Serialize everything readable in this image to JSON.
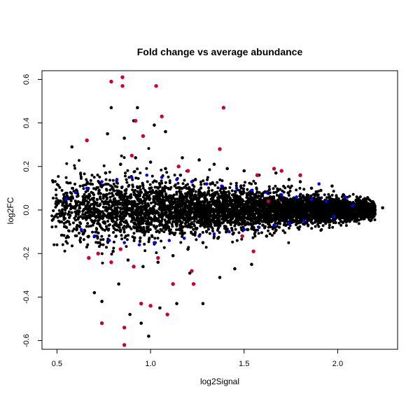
{
  "chart_data": {
    "type": "scatter",
    "title": "Fold change vs average abundance",
    "xlabel": "log2Signal",
    "ylabel": "log2FC",
    "xlim": [
      0.42,
      2.32
    ],
    "ylim": [
      -0.64,
      0.64
    ],
    "x_ticks": [
      0.5,
      1.0,
      1.5,
      2.0
    ],
    "x_tick_labels": [
      "0.5",
      "1.0",
      "1.5",
      "2.0"
    ],
    "y_ticks": [
      -0.6,
      -0.4,
      -0.2,
      0.0,
      0.2,
      0.4,
      0.6
    ],
    "y_tick_labels": [
      "-0.6",
      "-0.4",
      "-0.2",
      "0.0",
      "0.2",
      "0.4",
      "0.6"
    ],
    "grid": false,
    "colors": {
      "background": "#ffffff",
      "points": "#000000",
      "blue_points": "#0000ff",
      "red_points": "#cc0033"
    },
    "series": [
      {
        "color": "#000000",
        "points": [
          [
            0.52,
            0.04
          ],
          [
            0.56,
            -0.02
          ],
          [
            0.6,
            0.08
          ],
          [
            0.64,
            -0.11
          ],
          [
            0.68,
            0.12
          ],
          [
            0.72,
            -0.15
          ],
          [
            0.76,
            0.17
          ],
          [
            0.8,
            -0.19
          ],
          [
            0.84,
            0.21
          ],
          [
            0.88,
            -0.23
          ],
          [
            0.92,
            0.24
          ],
          [
            0.96,
            -0.26
          ],
          [
            1.0,
            0.22
          ],
          [
            1.04,
            -0.24
          ],
          [
            1.08,
            0.19
          ],
          [
            1.12,
            -0.21
          ],
          [
            1.16,
            0.16
          ],
          [
            1.2,
            -0.18
          ],
          [
            1.24,
            0.14
          ],
          [
            1.28,
            -0.15
          ],
          [
            1.32,
            0.12
          ],
          [
            1.36,
            -0.13
          ],
          [
            1.4,
            0.1
          ],
          [
            1.44,
            -0.11
          ],
          [
            1.48,
            0.08
          ],
          [
            1.52,
            -0.09
          ],
          [
            1.56,
            0.07
          ],
          [
            1.6,
            -0.07
          ],
          [
            1.64,
            0.06
          ],
          [
            1.68,
            -0.06
          ],
          [
            1.72,
            0.05
          ],
          [
            1.76,
            -0.05
          ],
          [
            1.8,
            0.04
          ],
          [
            1.84,
            -0.04
          ],
          [
            1.88,
            0.03
          ],
          [
            1.92,
            -0.03
          ],
          [
            1.96,
            0.03
          ],
          [
            2.0,
            -0.02
          ],
          [
            2.04,
            0.02
          ],
          [
            2.08,
            -0.01
          ],
          [
            2.12,
            0.01
          ],
          [
            2.16,
            -0.01
          ],
          [
            2.2,
            0.0
          ],
          [
            2.24,
            0.01
          ],
          [
            0.58,
            0.29
          ],
          [
            0.7,
            -0.38
          ],
          [
            0.74,
            -0.42
          ],
          [
            0.77,
            0.35
          ],
          [
            0.79,
            0.47
          ],
          [
            0.83,
            -0.34
          ],
          [
            0.86,
            0.33
          ],
          [
            0.89,
            -0.48
          ],
          [
            0.91,
            0.41
          ],
          [
            0.93,
            0.47
          ],
          [
            0.95,
            -0.52
          ],
          [
            0.99,
            -0.58
          ],
          [
            1.02,
            0.39
          ],
          [
            1.05,
            -0.45
          ],
          [
            1.08,
            0.36
          ],
          [
            1.14,
            -0.43
          ],
          [
            1.17,
            0.24
          ],
          [
            1.21,
            -0.29
          ],
          [
            1.26,
            0.23
          ],
          [
            1.28,
            -0.43
          ],
          [
            1.34,
            0.21
          ],
          [
            1.37,
            -0.31
          ],
          [
            1.41,
            0.19
          ],
          [
            1.45,
            -0.27
          ],
          [
            1.5,
            0.18
          ],
          [
            1.54,
            -0.25
          ],
          [
            1.58,
            0.16
          ],
          [
            1.62,
            -0.12
          ],
          [
            1.67,
            0.17
          ],
          [
            1.74,
            0.14
          ],
          [
            1.8,
            0.13
          ],
          [
            1.86,
            0.1
          ],
          [
            1.91,
            0.09
          ],
          [
            1.97,
            0.11
          ],
          [
            2.03,
            0.07
          ]
        ]
      },
      {
        "color": "#0000ff",
        "points": [
          [
            0.55,
            0.05
          ],
          [
            0.6,
            0.08
          ],
          [
            0.63,
            -0.09
          ],
          [
            0.66,
            0.1
          ],
          [
            0.7,
            -0.12
          ],
          [
            0.74,
            0.13
          ],
          [
            0.78,
            -0.14
          ],
          [
            0.82,
            0.14
          ],
          [
            0.86,
            -0.15
          ],
          [
            0.9,
            0.15
          ],
          [
            0.94,
            -0.16
          ],
          [
            0.98,
            0.16
          ],
          [
            1.02,
            -0.15
          ],
          [
            1.06,
            0.15
          ],
          [
            1.1,
            -0.14
          ],
          [
            1.14,
            0.14
          ],
          [
            1.18,
            -0.13
          ],
          [
            1.22,
            0.13
          ],
          [
            1.26,
            -0.12
          ],
          [
            1.3,
            0.12
          ],
          [
            1.34,
            -0.11
          ],
          [
            1.38,
            0.11
          ],
          [
            1.42,
            -0.1
          ],
          [
            1.46,
            0.1
          ],
          [
            1.5,
            -0.09
          ],
          [
            1.54,
            0.09
          ],
          [
            1.58,
            -0.08
          ],
          [
            1.62,
            0.08
          ],
          [
            1.66,
            -0.07
          ],
          [
            1.7,
            0.07
          ],
          [
            1.74,
            -0.06
          ],
          [
            1.78,
            0.06
          ],
          [
            1.82,
            -0.05
          ],
          [
            1.86,
            0.05
          ],
          [
            1.9,
            0.12
          ],
          [
            1.94,
            0.04
          ],
          [
            1.98,
            -0.03
          ],
          [
            2.04,
            0.06
          ],
          [
            2.08,
            0.02
          ]
        ]
      },
      {
        "color": "#cc0033",
        "points": [
          [
            0.66,
            0.32
          ],
          [
            0.79,
            0.59
          ],
          [
            0.85,
            0.61
          ],
          [
            0.85,
            0.57
          ],
          [
            0.9,
            0.25
          ],
          [
            0.92,
            0.41
          ],
          [
            0.96,
            0.34
          ],
          [
            1.03,
            0.57
          ],
          [
            1.06,
            0.43
          ],
          [
            1.39,
            0.47
          ],
          [
            1.37,
            0.28
          ],
          [
            1.57,
            0.16
          ],
          [
            1.66,
            0.19
          ],
          [
            1.7,
            0.18
          ],
          [
            1.8,
            0.16
          ],
          [
            0.74,
            -0.52
          ],
          [
            0.86,
            -0.54
          ],
          [
            0.86,
            -0.62
          ],
          [
            0.95,
            -0.43
          ],
          [
            1.0,
            -0.44
          ],
          [
            1.09,
            -0.48
          ],
          [
            0.67,
            -0.22
          ],
          [
            0.72,
            -0.2
          ],
          [
            0.79,
            -0.24
          ],
          [
            0.84,
            -0.18
          ],
          [
            0.91,
            -0.26
          ],
          [
            1.04,
            -0.22
          ],
          [
            1.12,
            -0.34
          ],
          [
            1.22,
            -0.28
          ],
          [
            1.23,
            -0.34
          ],
          [
            1.49,
            -0.12
          ],
          [
            1.55,
            -0.19
          ],
          [
            1.63,
            0.04
          ],
          [
            1.15,
            0.2
          ],
          [
            1.2,
            0.18
          ]
        ]
      }
    ]
  }
}
